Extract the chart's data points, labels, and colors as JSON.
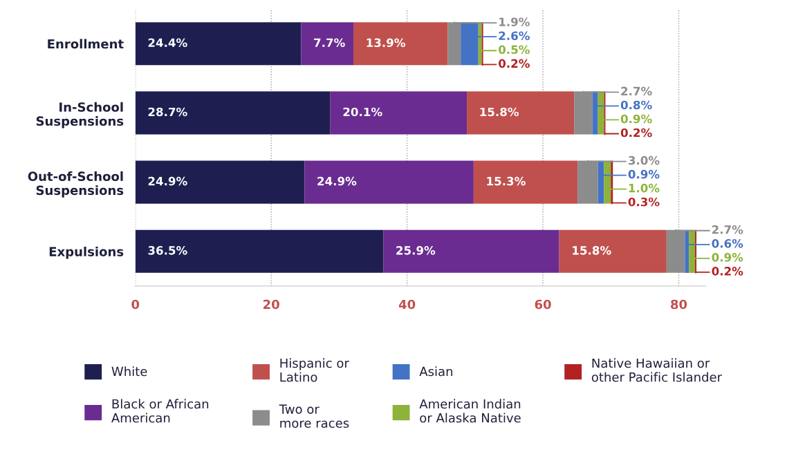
{
  "chart_data": {
    "type": "bar",
    "orientation": "horizontal",
    "stacked": true,
    "categories": [
      "Enrollment",
      "In-School\nSuspensions",
      "Out-of-School\nSuspensions",
      "Expulsions"
    ],
    "series": [
      {
        "name": "White",
        "color": "#1e1f50",
        "values": [
          24.4,
          28.7,
          24.9,
          36.5
        ],
        "value_labels": [
          "24.4%",
          "28.7%",
          "24.9%",
          "36.5%"
        ]
      },
      {
        "name": "Black or African\nAmerican",
        "color": "#6a2c91",
        "values": [
          7.7,
          20.1,
          24.9,
          25.9
        ],
        "value_labels": [
          "7.7%",
          "20.1%",
          "24.9%",
          "25.9%"
        ]
      },
      {
        "name": "Hispanic or\nLatino",
        "color": "#c0504d",
        "values": [
          13.9,
          15.8,
          15.3,
          15.8
        ],
        "value_labels": [
          "13.9%",
          "15.8%",
          "15.3%",
          "15.8%"
        ]
      },
      {
        "name": "Two or\nmore races",
        "color": "#8c8c8c",
        "values": [
          1.9,
          2.7,
          3.0,
          2.7
        ],
        "value_labels": [
          "1.9%",
          "2.7%",
          "3.0%",
          "2.7%"
        ]
      },
      {
        "name": "Asian",
        "color": "#4472c4",
        "values": [
          2.6,
          0.8,
          0.9,
          0.6
        ],
        "value_labels": [
          "2.6%",
          "0.8%",
          "0.9%",
          "0.6%"
        ]
      },
      {
        "name": "American Indian\nor Alaska Native",
        "color": "#8db33a",
        "values": [
          0.5,
          0.9,
          1.0,
          0.9
        ],
        "value_labels": [
          "0.5%",
          "0.9%",
          "1.0%",
          "0.9%"
        ]
      },
      {
        "name": "Native Hawaiian or\nother Pacific Islander",
        "color": "#b22222",
        "values": [
          0.2,
          0.2,
          0.3,
          0.2
        ],
        "value_labels": [
          "0.2%",
          "0.2%",
          "0.3%",
          "0.2%"
        ]
      }
    ],
    "xlim": [
      0,
      84
    ],
    "xticks": [
      0,
      20,
      40,
      60,
      80
    ],
    "grid": "x",
    "legend": "bottom"
  }
}
